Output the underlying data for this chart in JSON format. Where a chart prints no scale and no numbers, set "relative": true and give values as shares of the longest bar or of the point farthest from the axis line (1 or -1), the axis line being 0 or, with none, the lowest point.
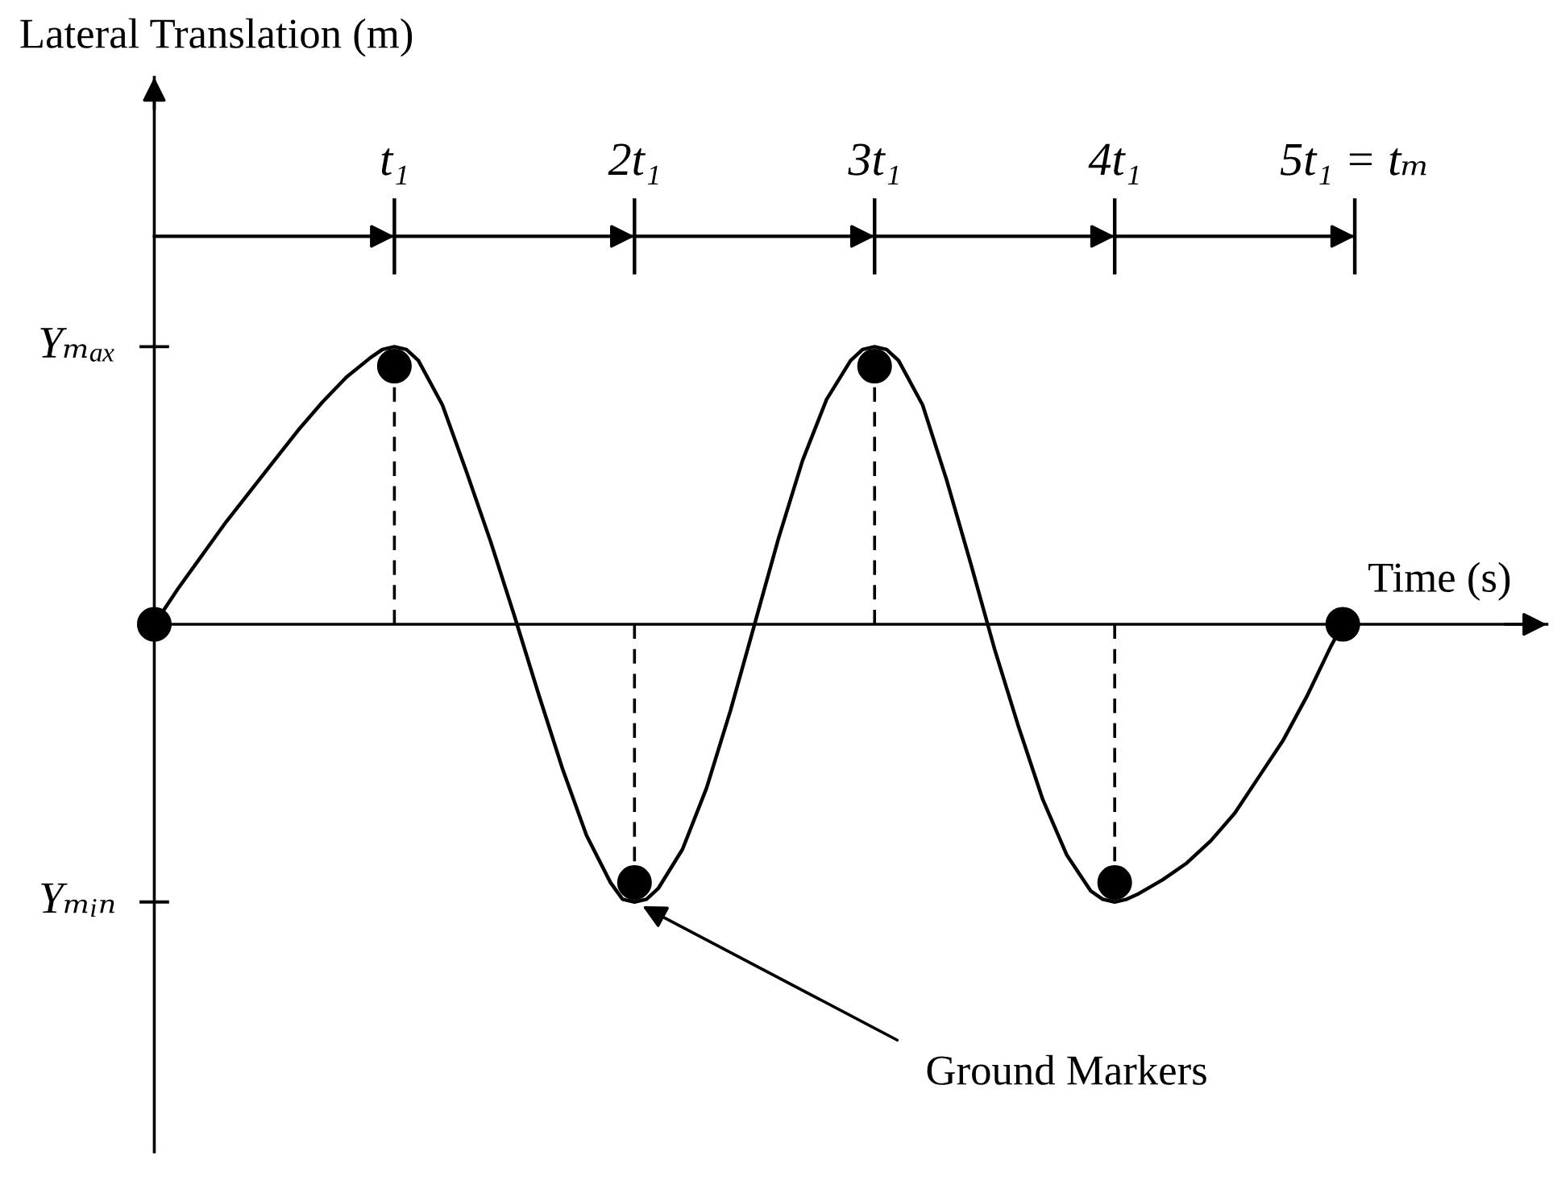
{
  "chart_data": {
    "type": "line",
    "relative": true,
    "xlabel": "Time (s)",
    "ylabel": "Lateral Translation (m)",
    "xlim": [
      0,
      5.8
    ],
    "xticks": [
      {
        "value": 1,
        "label": "t₁"
      },
      {
        "value": 2,
        "label": "2t₁"
      },
      {
        "value": 3,
        "label": "3t₁"
      },
      {
        "value": 4,
        "label": "4t₁"
      },
      {
        "value": 5,
        "label": "5t₁ = tₘ"
      }
    ],
    "grid": false,
    "series": [
      {
        "color": "#000000",
        "marker": "none",
        "line_style": "solid",
        "x": [
          0,
          0.1,
          0.2,
          0.3,
          0.4,
          0.5,
          0.6,
          0.7,
          0.8,
          0.9,
          0.95,
          1.0,
          1.05,
          1.1,
          1.2,
          1.3,
          1.4,
          1.5,
          1.6,
          1.7,
          1.8,
          1.9,
          1.95,
          2.0,
          2.05,
          2.1,
          2.2,
          2.3,
          2.4,
          2.5,
          2.6,
          2.7,
          2.8,
          2.9,
          2.95,
          3.0,
          3.05,
          3.1,
          3.2,
          3.3,
          3.4,
          3.5,
          3.6,
          3.7,
          3.8,
          3.9,
          3.95,
          4.0,
          4.05,
          4.1,
          4.2,
          4.3,
          4.4,
          4.5,
          4.6,
          4.7,
          4.8,
          4.9,
          4.95
        ],
        "values": [
          0,
          0.13,
          0.25,
          0.37,
          0.48,
          0.59,
          0.7,
          0.8,
          0.89,
          0.96,
          0.99,
          1.0,
          0.99,
          0.95,
          0.79,
          0.55,
          0.3,
          0.03,
          -0.25,
          -0.52,
          -0.76,
          -0.93,
          -0.99,
          -1.0,
          -0.99,
          -0.95,
          -0.81,
          -0.59,
          -0.31,
          0,
          0.31,
          0.59,
          0.81,
          0.95,
          0.99,
          1.0,
          0.99,
          0.95,
          0.79,
          0.52,
          0.22,
          -0.09,
          -0.37,
          -0.63,
          -0.83,
          -0.96,
          -0.99,
          -1.0,
          -0.99,
          -0.97,
          -0.92,
          -0.86,
          -0.78,
          -0.68,
          -0.55,
          -0.42,
          -0.26,
          -0.08,
          0
        ]
      },
      {
        "type": "lollipop",
        "color": "#000000",
        "marker": "circle",
        "line_style": "dashed",
        "x": [
          0,
          1,
          2,
          3,
          4,
          4.95
        ],
        "values": [
          0,
          0.93,
          -0.93,
          0.93,
          -0.93,
          0
        ]
      }
    ],
    "ref_lines": [
      {
        "axis": "y",
        "value": 1,
        "label": "Yₘₐₓ"
      },
      {
        "axis": "y",
        "value": -1,
        "label": "Yₘᵢₙ"
      }
    ],
    "annotations": [
      {
        "text": "Ground Markers",
        "x": 2,
        "y": -1
      }
    ]
  }
}
